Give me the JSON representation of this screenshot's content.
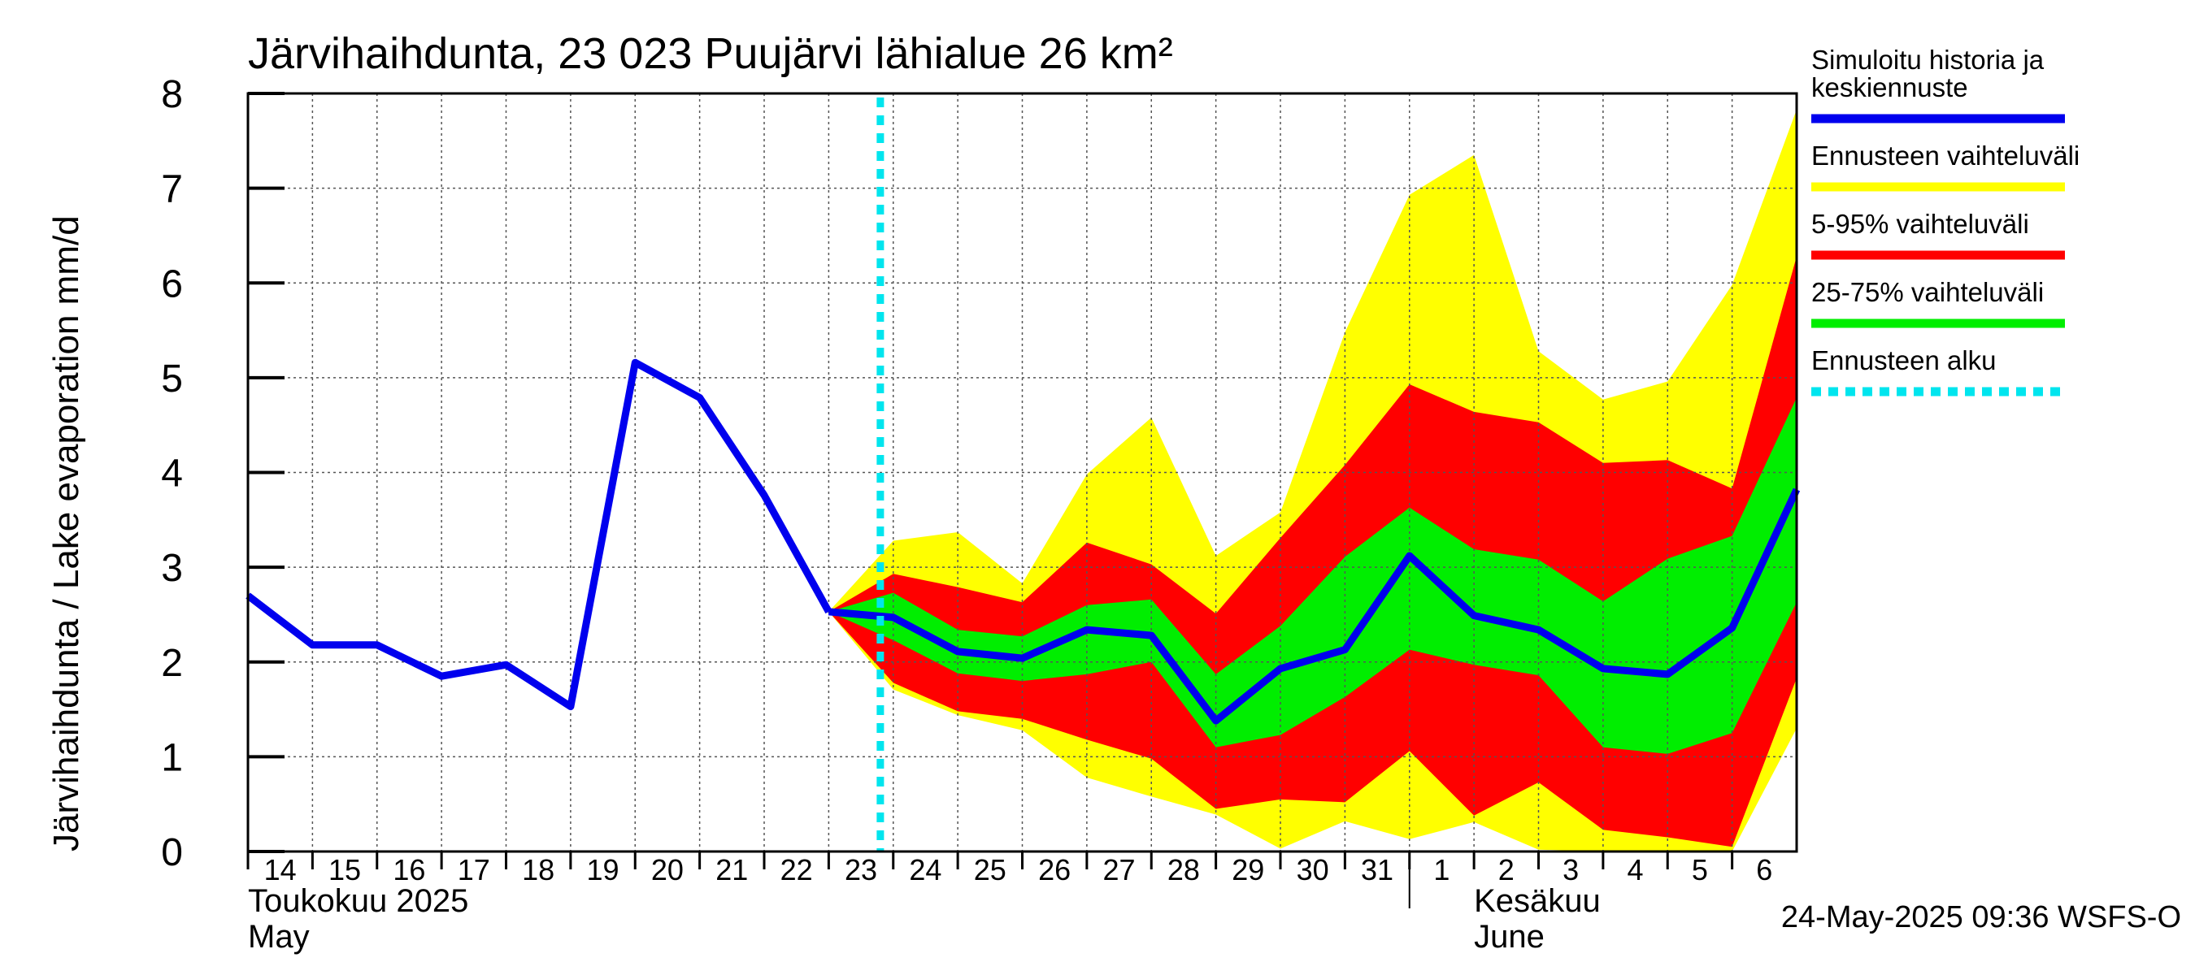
{
  "chart_data": {
    "type": "area",
    "title": "Järvihaihdunta, 23 023 Puujärvi lähialue 26 km²",
    "ylabel": "Järvihaihdunta / Lake evaporation   mm/d",
    "ylim": [
      0,
      8
    ],
    "yticks": [
      "0",
      "1",
      "2",
      "3",
      "4",
      "5",
      "6",
      "7",
      "8"
    ],
    "grid": true,
    "legend_position": "right",
    "x_dates": [
      "2025-05-14",
      "2025-05-15",
      "2025-05-16",
      "2025-05-17",
      "2025-05-18",
      "2025-05-19",
      "2025-05-20",
      "2025-05-21",
      "2025-05-22",
      "2025-05-23",
      "2025-05-24",
      "2025-05-25",
      "2025-05-26",
      "2025-05-27",
      "2025-05-28",
      "2025-05-29",
      "2025-05-30",
      "2025-05-31",
      "2025-06-01",
      "2025-06-02",
      "2025-06-03",
      "2025-06-04",
      "2025-06-05",
      "2025-06-06",
      "2025-06-07"
    ],
    "xtick_labels": [
      "14",
      "15",
      "16",
      "17",
      "18",
      "19",
      "20",
      "21",
      "22",
      "23",
      "24",
      "25",
      "26",
      "27",
      "28",
      "29",
      "30",
      "31",
      "1",
      "2",
      "3",
      "4",
      "5",
      "6"
    ],
    "month_labels": [
      {
        "line1": "Toukokuu  2025",
        "line2": "May",
        "at": "2025-05-14"
      },
      {
        "line1": "Kesäkuu",
        "line2": "June",
        "at": "2025-06-02"
      }
    ],
    "month_boundary": "2025-06-01",
    "forecast_start": "2025-05-24",
    "history": {
      "name": "Simuloitu historia ja keskiennuste",
      "x": [
        "2025-05-14",
        "2025-05-15",
        "2025-05-16",
        "2025-05-17",
        "2025-05-18",
        "2025-05-19",
        "2025-05-20",
        "2025-05-21",
        "2025-05-22",
        "2025-05-23"
      ],
      "values": [
        2.7,
        2.18,
        2.18,
        1.85,
        1.97,
        1.53,
        5.16,
        4.79,
        3.76,
        2.53
      ]
    },
    "forecast_x": [
      "2025-05-23",
      "2025-05-24",
      "2025-05-25",
      "2025-05-26",
      "2025-05-27",
      "2025-05-28",
      "2025-05-29",
      "2025-05-30",
      "2025-05-31",
      "2025-06-01",
      "2025-06-02",
      "2025-06-03",
      "2025-06-04",
      "2025-06-05",
      "2025-06-06",
      "2025-06-07"
    ],
    "forecast_median": [
      2.53,
      2.47,
      2.11,
      2.04,
      2.34,
      2.28,
      1.38,
      1.93,
      2.13,
      3.12,
      2.49,
      2.34,
      1.93,
      1.87,
      2.36,
      3.82
    ],
    "bands": [
      {
        "name": "Ennusteen vaihteluväli",
        "color": "#ffff00",
        "upper": [
          2.53,
          3.28,
          3.37,
          2.83,
          3.98,
          4.58,
          3.12,
          3.58,
          5.48,
          6.93,
          7.35,
          5.28,
          4.77,
          4.96,
          5.98,
          7.83
        ],
        "lower": [
          2.53,
          1.71,
          1.44,
          1.28,
          0.78,
          0.58,
          0.39,
          0.03,
          0.32,
          0.13,
          0.31,
          0.02,
          0.0,
          0.0,
          0.0,
          1.3
        ]
      },
      {
        "name": "5-95% vaihteluväli",
        "color": "#ff0000",
        "upper": [
          2.53,
          2.93,
          2.79,
          2.63,
          3.26,
          3.03,
          2.51,
          3.31,
          4.08,
          4.93,
          4.64,
          4.53,
          4.1,
          4.13,
          3.83,
          6.28
        ],
        "lower": [
          2.53,
          1.78,
          1.48,
          1.4,
          1.18,
          0.98,
          0.45,
          0.55,
          0.52,
          1.06,
          0.38,
          0.73,
          0.23,
          0.15,
          0.05,
          1.83
        ]
      },
      {
        "name": "25-75% vaihteluväli",
        "color": "#00ee00",
        "upper": [
          2.53,
          2.73,
          2.34,
          2.27,
          2.6,
          2.66,
          1.87,
          2.38,
          3.11,
          3.63,
          3.19,
          3.08,
          2.64,
          3.09,
          3.33,
          4.79
        ],
        "lower": [
          2.53,
          2.23,
          1.88,
          1.8,
          1.87,
          2.0,
          1.1,
          1.23,
          1.63,
          2.13,
          1.97,
          1.86,
          1.1,
          1.03,
          1.25,
          2.63
        ]
      }
    ],
    "series": [
      {
        "name": "Simuloitu historia ja keskiennuste",
        "color": "#0000ee"
      },
      {
        "name": "Ennusteen vaihteluväli",
        "color": "#ffff00"
      },
      {
        "name": "5-95% vaihteluväli",
        "color": "#ff0000"
      },
      {
        "name": "25-75% vaihteluväli",
        "color": "#00ee00"
      },
      {
        "name": "Ennusteen alku",
        "color": "#00e5ee"
      }
    ],
    "legend": [
      {
        "label": "Simuloitu historia ja\nkeskiennuste",
        "color": "#0000ee",
        "style": "solid"
      },
      {
        "label": "Ennusteen vaihteluväli",
        "color": "#ffff00",
        "style": "solid"
      },
      {
        "label": "5-95% vaihteluväli",
        "color": "#ff0000",
        "style": "solid"
      },
      {
        "label": "25-75% vaihteluväli",
        "color": "#00ee00",
        "style": "solid"
      },
      {
        "label": "Ennusteen alku",
        "color": "#00e5ee",
        "style": "dotted"
      }
    ],
    "footer": "24-May-2025 09:36 WSFS-O"
  }
}
